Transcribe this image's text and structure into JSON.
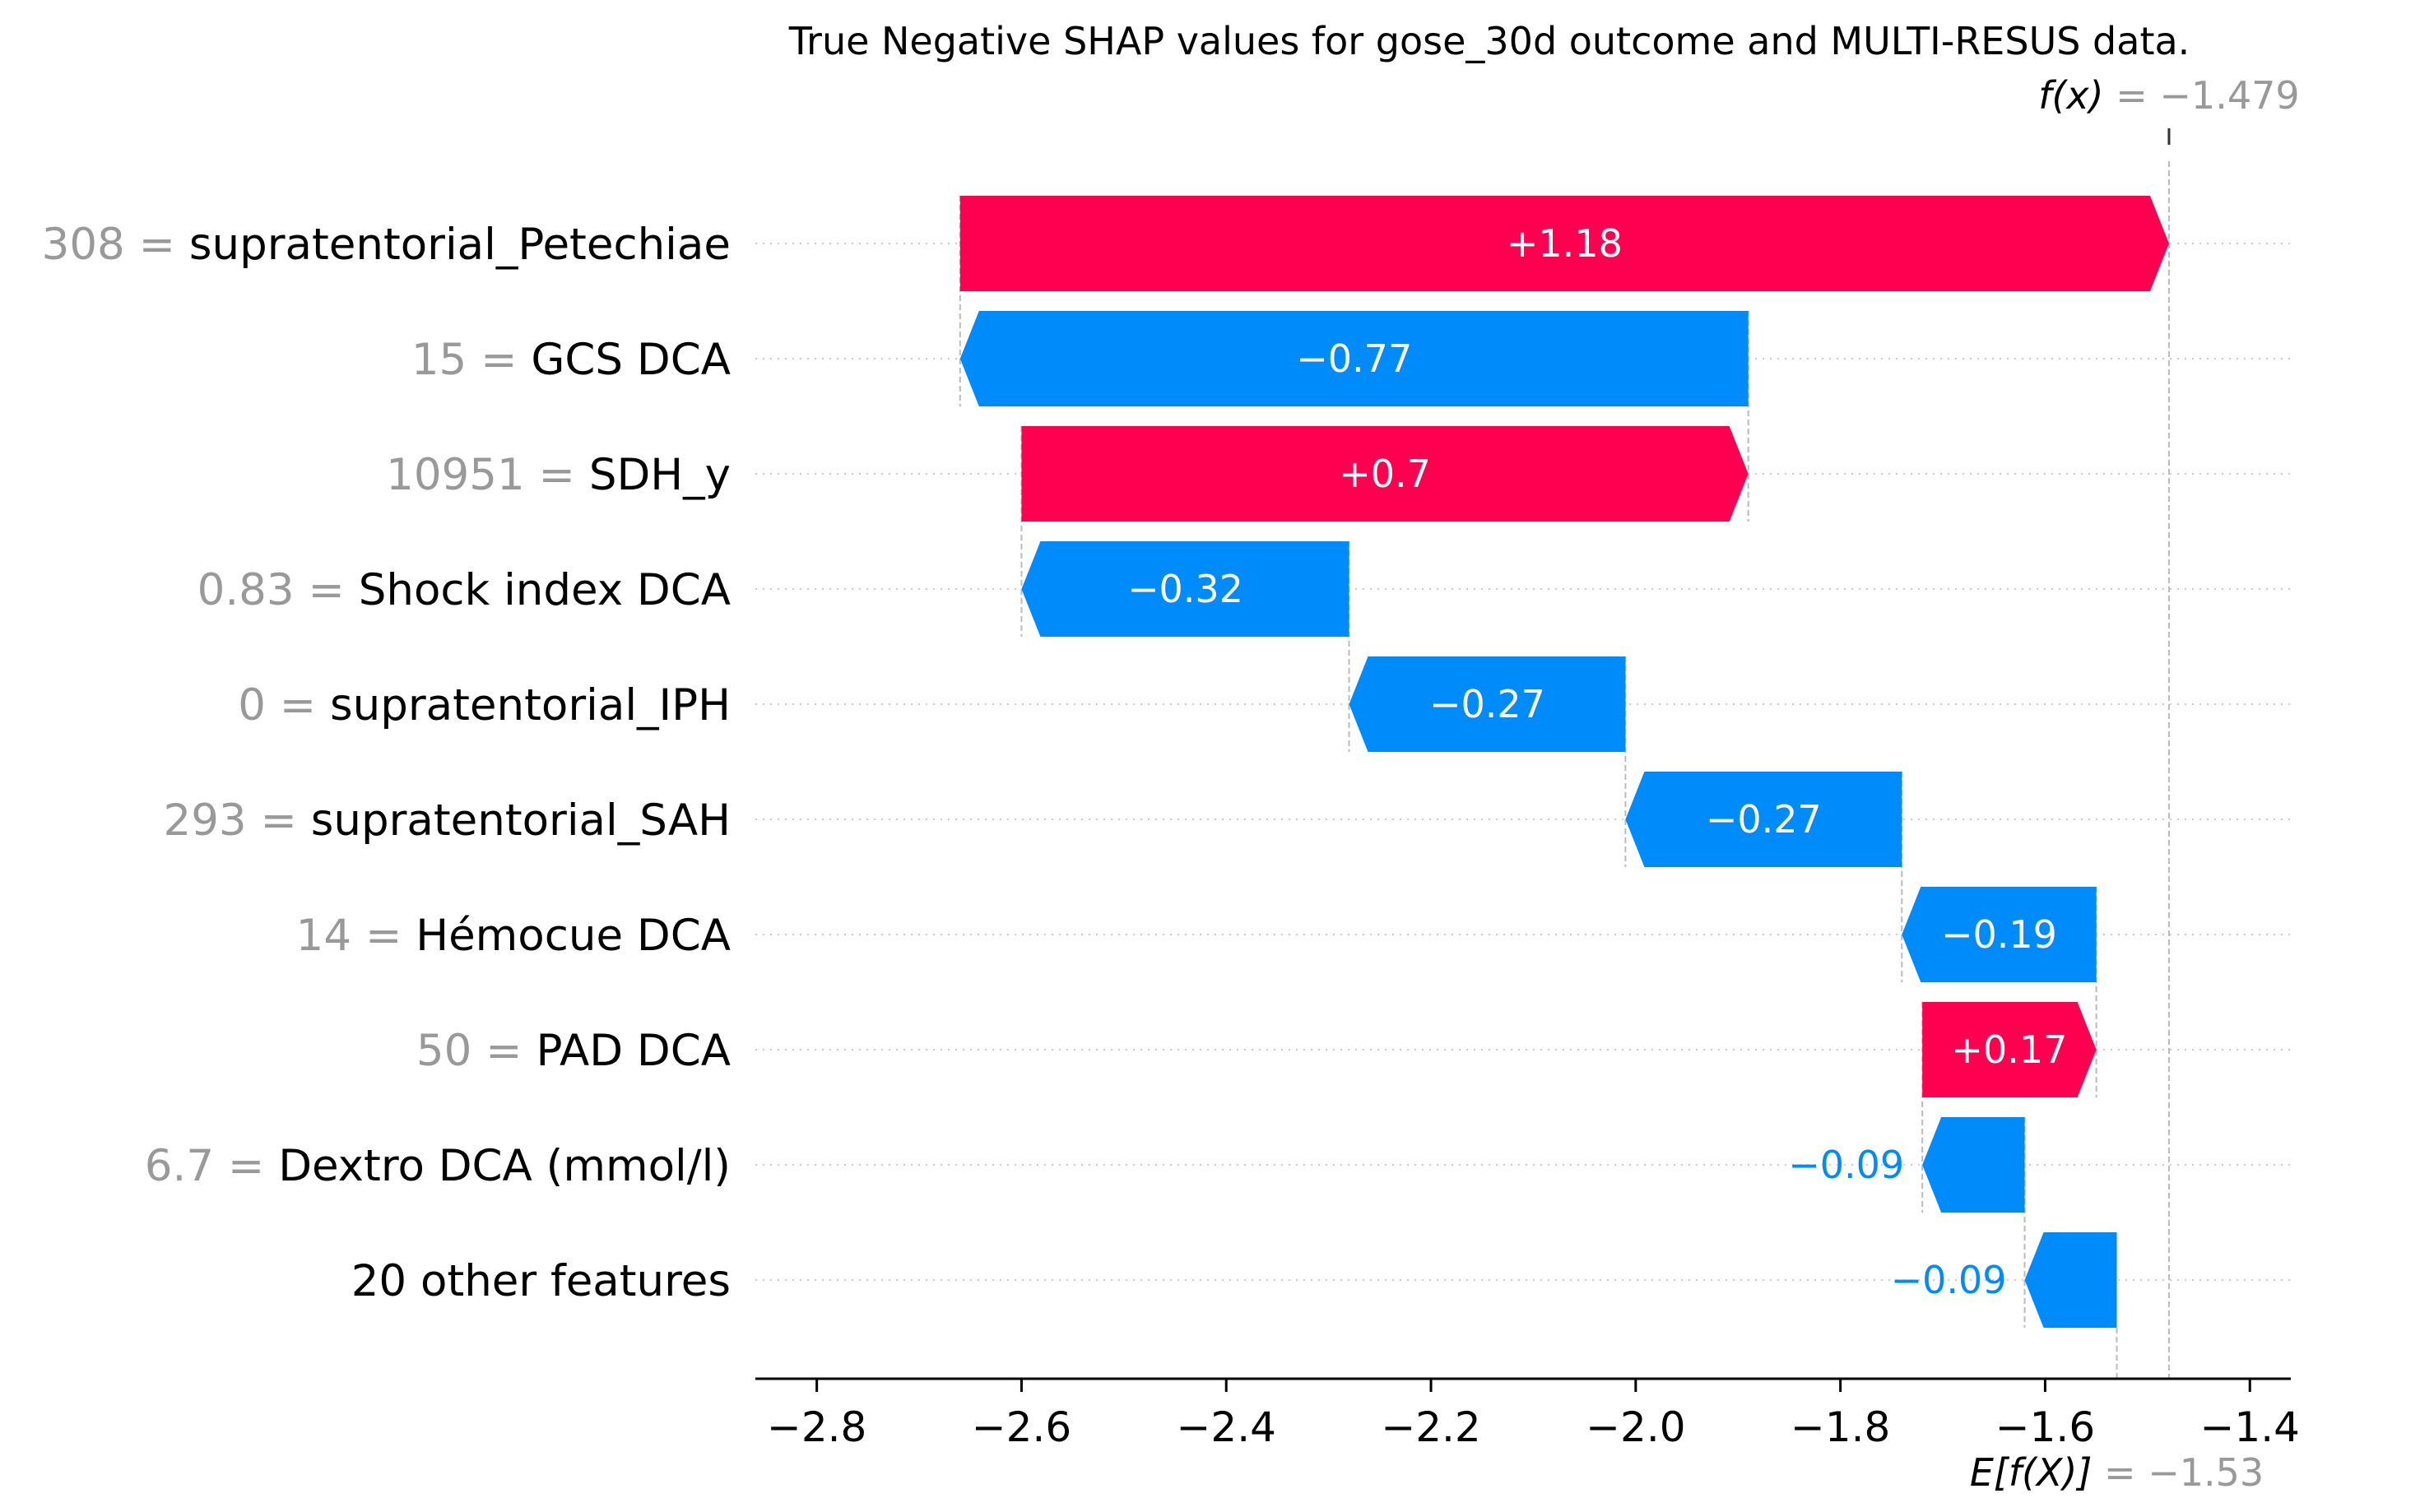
{
  "chart_data": {
    "type": "waterfall",
    "title": "True Negative SHAP values for gose_30d outcome and MULTI-RESUS data.",
    "base_value": -1.53,
    "base_label_prefix": "E[f(X)]",
    "base_label_value": " = −1.53",
    "output_value": -1.479,
    "output_label_prefix": "f(x)",
    "output_label_value": " = −1.479",
    "xlim": [
      -2.86,
      -1.36
    ],
    "xticks": [
      -2.8,
      -2.6,
      -2.4,
      -2.2,
      -2.0,
      -1.8,
      -1.6,
      -1.4
    ],
    "xtick_labels": [
      "−2.8",
      "−2.6",
      "−2.4",
      "−2.2",
      "−2.0",
      "−1.8",
      "−1.6",
      "−1.4"
    ],
    "features": [
      {
        "value": "308 = ",
        "name": "supratentorial_Petechiae",
        "shap": 1.18,
        "label": "+1.18",
        "start": -2.66,
        "end": -1.479
      },
      {
        "value": "15 = ",
        "name": "GCS DCA",
        "shap": -0.77,
        "label": "−0.77",
        "start": -1.89,
        "end": -2.66
      },
      {
        "value": "10951 = ",
        "name": "SDH_y",
        "shap": 0.7,
        "label": "+0.7",
        "start": -2.6,
        "end": -1.89
      },
      {
        "value": "0.83 = ",
        "name": "Shock index DCA",
        "shap": -0.32,
        "label": "−0.32",
        "start": -2.28,
        "end": -2.6
      },
      {
        "value": "0 = ",
        "name": "supratentorial_IPH",
        "shap": -0.27,
        "label": "−0.27",
        "start": -2.01,
        "end": -2.28
      },
      {
        "value": "293 = ",
        "name": "supratentorial_SAH",
        "shap": -0.27,
        "label": "−0.27",
        "start": -1.74,
        "end": -2.01
      },
      {
        "value": "14 = ",
        "name": "Hémocue DCA",
        "shap": -0.19,
        "label": "−0.19",
        "start": -1.55,
        "end": -1.74
      },
      {
        "value": "50 = ",
        "name": "PAD DCA",
        "shap": 0.17,
        "label": "+0.17",
        "start": -1.72,
        "end": -1.55
      },
      {
        "value": "6.7 = ",
        "name": "Dextro DCA (mmol/l)",
        "shap": -0.09,
        "label": "−0.09",
        "start": -1.62,
        "end": -1.72
      },
      {
        "value": "",
        "name": "20 other features",
        "shap": -0.09,
        "label": "−0.09",
        "start": -1.53,
        "end": -1.62
      }
    ],
    "colors": {
      "positive": "#ff0051",
      "negative": "#008bfb",
      "text_inside": "#ffffff",
      "grid": "#cccccc",
      "value_text": "#999999"
    }
  }
}
